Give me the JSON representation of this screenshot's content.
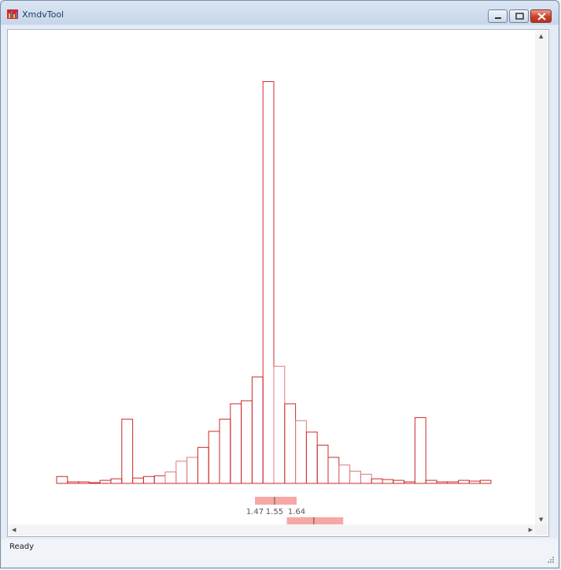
{
  "window": {
    "title": "XmdvTool",
    "status": "Ready"
  },
  "colors": {
    "bar_stroke": "#cc2a2a",
    "bar_stroke_light": "#e07a7a",
    "range_fill": "#f7a8a4",
    "range_marker": "#555555"
  },
  "chart_data": {
    "type": "bar",
    "bins": 40,
    "values": [
      9,
      2,
      2,
      1,
      4,
      6,
      84,
      7,
      9,
      10,
      15,
      29,
      34,
      47,
      68,
      84,
      104,
      108,
      139,
      525,
      153,
      104,
      82,
      67,
      50,
      34,
      24,
      16,
      12,
      6,
      5,
      4,
      2,
      86,
      4,
      2,
      2,
      4,
      3,
      4
    ],
    "ylim": [
      0,
      540
    ],
    "tick_labels": [
      "1.47",
      "1.55",
      "1.64"
    ],
    "brushes": [
      {
        "min": 1.47,
        "mean": 1.55,
        "max": 1.64
      },
      {
        "min": 1.6,
        "mean": 1.71,
        "max": 1.83
      }
    ]
  }
}
